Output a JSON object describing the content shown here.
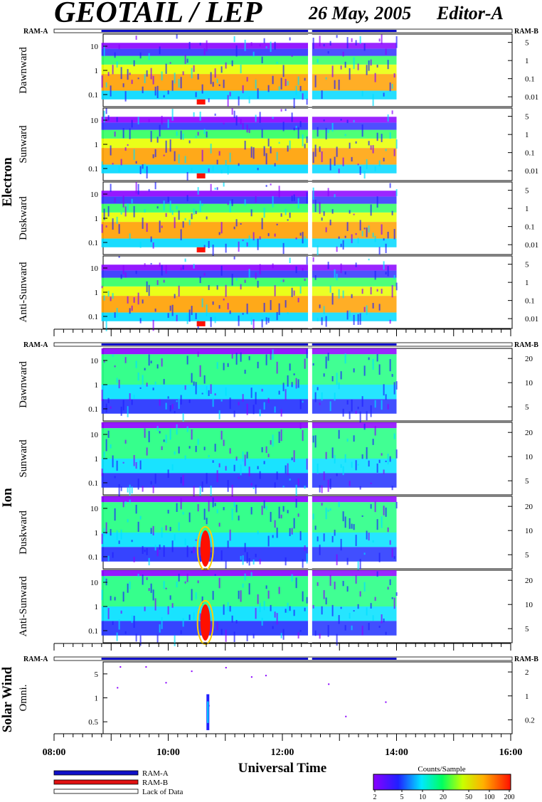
{
  "header": {
    "title": "GEOTAIL / LEP",
    "date": "26 May, 2005",
    "editor": "Editor-A"
  },
  "ram_labels": {
    "left": "RAM-A",
    "right": "RAM-B"
  },
  "legend": {
    "items": [
      {
        "label": "RAM-A",
        "color": "#1010c8"
      },
      {
        "label": "RAM-B",
        "color": "#e01010"
      },
      {
        "label": "Lack of Data",
        "color": "#ffffff"
      }
    ]
  },
  "colorbar": {
    "title": "Counts/Sample",
    "ticks": [
      "2",
      "5",
      "10",
      "20",
      "50",
      "100",
      "200"
    ]
  },
  "chart_data": {
    "type": "heatmap",
    "xlabel": "Universal Time",
    "x_ticks": [
      "08:00",
      "10:00",
      "12:00",
      "14:00",
      "16:00"
    ],
    "x_range_hours": [
      8,
      16
    ],
    "data_coverage_hours": [
      8.83,
      14.0
    ],
    "data_gap_hours": [
      12.45,
      12.52
    ],
    "groups": [
      {
        "name": "Electron",
        "panels": [
          {
            "label": "Dawnward",
            "left_ticks": [
              "10",
              "1",
              "0.1"
            ],
            "right_ticks": [
              "5",
              "1",
              "0.1",
              "0.01"
            ]
          },
          {
            "label": "Sunward",
            "left_ticks": [
              "10",
              "1",
              "0.1"
            ],
            "right_ticks": [
              "5",
              "1",
              "0.1",
              "0.01"
            ]
          },
          {
            "label": "Duskward",
            "left_ticks": [
              "10",
              "1",
              "0.1"
            ],
            "right_ticks": [
              "5",
              "1",
              "0.1",
              "0.01"
            ]
          },
          {
            "label": "Anti-Sunward",
            "left_ticks": [
              "10",
              "1",
              "0.1"
            ],
            "right_ticks": [
              "5",
              "1",
              "0.1",
              "0.01"
            ]
          }
        ]
      },
      {
        "name": "Ion",
        "panels": [
          {
            "label": "Dawnward",
            "left_ticks": [
              "10",
              "1",
              "0.1"
            ],
            "right_ticks": [
              "20",
              "10",
              "5"
            ]
          },
          {
            "label": "Sunward",
            "left_ticks": [
              "10",
              "1",
              "0.1"
            ],
            "right_ticks": [
              "20",
              "10",
              "5"
            ]
          },
          {
            "label": "Duskward",
            "left_ticks": [
              "10",
              "1",
              "0.1"
            ],
            "right_ticks": [
              "20",
              "10",
              "5"
            ]
          },
          {
            "label": "Anti-Sunward",
            "left_ticks": [
              "10",
              "1",
              "0.1"
            ],
            "right_ticks": [
              "20",
              "10",
              "5"
            ]
          }
        ]
      },
      {
        "name": "Solar Wind",
        "panels": [
          {
            "label": "Omni.",
            "left_ticks": [
              "5",
              "1",
              "0.5"
            ],
            "right_ticks": [
              "2",
              "1",
              "0.2"
            ]
          }
        ]
      }
    ]
  }
}
